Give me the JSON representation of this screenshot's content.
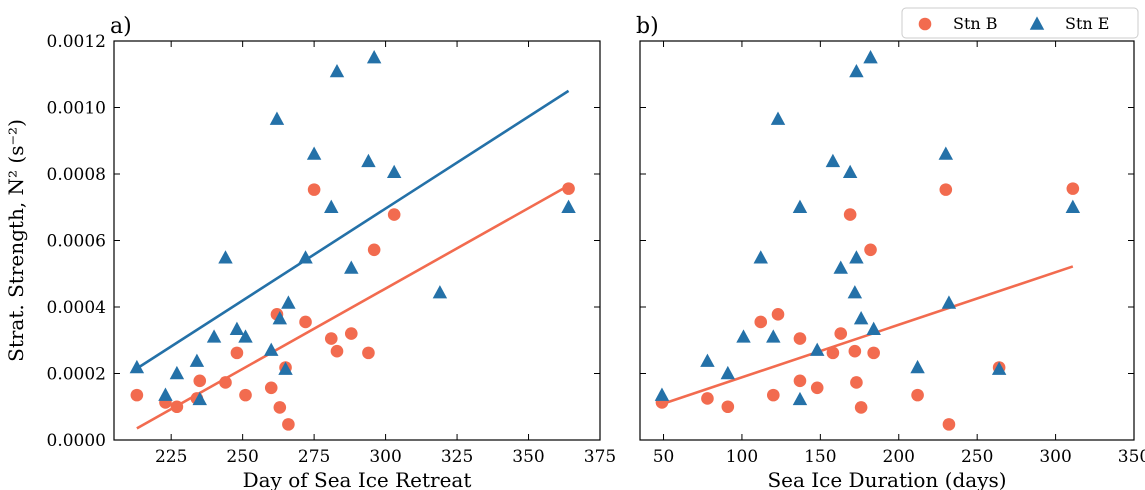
{
  "colors": {
    "stn_b": "#f26b4f",
    "stn_e": "#2471a8"
  },
  "legend": [
    {
      "label": "Stn B",
      "marker": "circle",
      "color": "#f26b4f"
    },
    {
      "label": "Stn E",
      "marker": "triangle",
      "color": "#2471a8"
    }
  ],
  "chart_data": [
    {
      "type": "scatter",
      "panel_label": "a)",
      "xlabel": "Day of Sea Ice Retreat",
      "ylabel": "Strat. Strength, N² (s⁻²)",
      "xlim": [
        205,
        375
      ],
      "ylim": [
        0,
        0.0012
      ],
      "xticks": [
        225,
        250,
        275,
        300,
        325,
        350,
        375
      ],
      "yticks": [
        0,
        0.0002,
        0.0004,
        0.0006,
        0.0008,
        0.001,
        0.0012
      ],
      "ytick_labels": [
        "0.0000",
        "0.0002",
        "0.0004",
        "0.0006",
        "0.0008",
        "0.0010",
        "0.0012"
      ],
      "series": [
        {
          "name": "Stn B",
          "marker": "circle",
          "points": [
            [
              213,
              0.000135
            ],
            [
              223,
              0.000113
            ],
            [
              227,
              0.0001
            ],
            [
              234,
              0.000125
            ],
            [
              235,
              0.000178
            ],
            [
              244,
              0.000173
            ],
            [
              248,
              0.000262
            ],
            [
              251,
              0.000135
            ],
            [
              260,
              0.000157
            ],
            [
              262,
              0.000378
            ],
            [
              263,
              9.8e-05
            ],
            [
              265,
              0.000218
            ],
            [
              266,
              4.7e-05
            ],
            [
              272,
              0.000355
            ],
            [
              275,
              0.000753
            ],
            [
              281,
              0.000305
            ],
            [
              283,
              0.000267
            ],
            [
              288,
              0.00032
            ],
            [
              294,
              0.000262
            ],
            [
              296,
              0.000572
            ],
            [
              303,
              0.000678
            ],
            [
              364,
              0.000756
            ]
          ],
          "fit": {
            "x": [
              213,
              364
            ],
            "y": [
              3.5e-05,
              0.000765
            ]
          }
        },
        {
          "name": "Stn E",
          "marker": "triangle",
          "points": [
            [
              213,
              0.000218
            ],
            [
              223,
              0.000135
            ],
            [
              227,
              0.0002
            ],
            [
              234,
              0.000237
            ],
            [
              235,
              0.000122
            ],
            [
              240,
              0.00031
            ],
            [
              244,
              0.000548
            ],
            [
              248,
              0.000333
            ],
            [
              251,
              0.00031
            ],
            [
              260,
              0.00027
            ],
            [
              262,
              0.000965
            ],
            [
              263,
              0.000365
            ],
            [
              265,
              0.000213
            ],
            [
              266,
              0.000412
            ],
            [
              272,
              0.000548
            ],
            [
              275,
              0.00086
            ],
            [
              281,
              0.0007
            ],
            [
              283,
              0.001108
            ],
            [
              288,
              0.000517
            ],
            [
              294,
              0.000838
            ],
            [
              296,
              0.00115
            ],
            [
              303,
              0.000805
            ],
            [
              319,
              0.000443
            ],
            [
              364,
              0.0007
            ]
          ],
          "fit": {
            "x": [
              213,
              364
            ],
            "y": [
              0.000215,
              0.00105
            ]
          }
        }
      ]
    },
    {
      "type": "scatter",
      "panel_label": "b)",
      "xlabel": "Sea Ice Duration (days)",
      "ylabel": "",
      "xlim": [
        35,
        350
      ],
      "ylim": [
        0,
        0.0012
      ],
      "xticks": [
        50,
        100,
        150,
        200,
        250,
        300,
        350
      ],
      "yticks": [
        0,
        0.0002,
        0.0004,
        0.0006,
        0.0008,
        0.001,
        0.0012
      ],
      "series": [
        {
          "name": "Stn B",
          "marker": "circle",
          "points": [
            [
              49,
              0.000113
            ],
            [
              78,
              0.000125
            ],
            [
              91,
              0.0001
            ],
            [
              112,
              0.000355
            ],
            [
              120,
              0.000135
            ],
            [
              123,
              0.000378
            ],
            [
              137,
              0.000178
            ],
            [
              137,
              0.000305
            ],
            [
              148,
              0.000157
            ],
            [
              158,
              0.000262
            ],
            [
              163,
              0.00032
            ],
            [
              169,
              0.000678
            ],
            [
              172,
              0.000267
            ],
            [
              173,
              0.000173
            ],
            [
              176,
              9.8e-05
            ],
            [
              182,
              0.000572
            ],
            [
              184,
              0.000262
            ],
            [
              212,
              0.000135
            ],
            [
              230,
              0.000753
            ],
            [
              232,
              4.7e-05
            ],
            [
              264,
              0.000218
            ],
            [
              311,
              0.000756
            ]
          ],
          "fit": {
            "x": [
              49,
              311
            ],
            "y": [
              0.000108,
              0.000522
            ]
          }
        },
        {
          "name": "Stn E",
          "marker": "triangle",
          "points": [
            [
              49,
              0.000135
            ],
            [
              78,
              0.000237
            ],
            [
              91,
              0.0002
            ],
            [
              101,
              0.00031
            ],
            [
              112,
              0.000548
            ],
            [
              120,
              0.00031
            ],
            [
              123,
              0.000965
            ],
            [
              137,
              0.000122
            ],
            [
              137,
              0.0007
            ],
            [
              148,
              0.00027
            ],
            [
              158,
              0.000838
            ],
            [
              163,
              0.000517
            ],
            [
              169,
              0.000805
            ],
            [
              172,
              0.000443
            ],
            [
              173,
              0.001108
            ],
            [
              173,
              0.000548
            ],
            [
              176,
              0.000365
            ],
            [
              182,
              0.00115
            ],
            [
              184,
              0.000333
            ],
            [
              212,
              0.000218
            ],
            [
              230,
              0.00086
            ],
            [
              232,
              0.000412
            ],
            [
              264,
              0.000213
            ],
            [
              311,
              0.0007
            ]
          ]
        }
      ]
    }
  ]
}
